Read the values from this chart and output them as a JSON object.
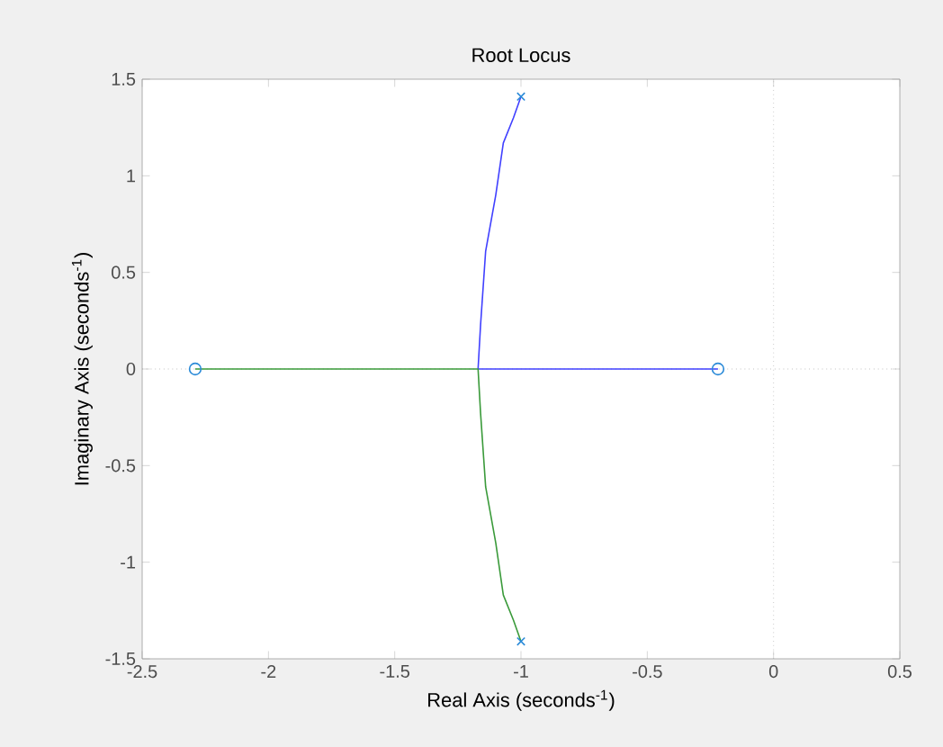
{
  "chart_data": {
    "type": "line",
    "title": "Root Locus",
    "xlabel": "Real Axis (seconds$^{-1}$)",
    "ylabel": "Imaginary Axis (seconds$^{-1}$)",
    "xlim": [
      -2.5,
      0.5
    ],
    "ylim": [
      -1.5,
      1.5
    ],
    "xticks": [
      -2.5,
      -2,
      -1.5,
      -1,
      -0.5,
      0,
      0.5
    ],
    "yticks": [
      -1.5,
      -1,
      -0.5,
      0,
      0.5,
      1,
      1.5
    ],
    "grid": false,
    "ref_lines": [
      {
        "axis": "x",
        "value": 0,
        "color": "#b0b0b0",
        "line_style": "dotted"
      },
      {
        "axis": "y",
        "value": 0,
        "color": "#a0a0a0",
        "line_style": "dotted"
      }
    ],
    "series": [
      {
        "type": "line",
        "color": "#4040ff",
        "marker": "none",
        "x": [
          -1,
          -1.03,
          -1.07,
          -1.1,
          -1.14,
          -1.16,
          -1.17,
          -0.22
        ],
        "values": [
          1.41,
          1.3,
          1.17,
          0.9,
          0.61,
          0.23,
          0,
          0
        ]
      },
      {
        "type": "line",
        "color": "#3a9a3a",
        "marker": "none",
        "x": [
          -1,
          -1.03,
          -1.07,
          -1.1,
          -1.14,
          -1.16,
          -1.17,
          -2.29
        ],
        "values": [
          -1.41,
          -1.3,
          -1.17,
          -0.9,
          -0.61,
          -0.23,
          0,
          0
        ]
      },
      {
        "type": "scatter",
        "color": "#2a8ad8",
        "marker": "cross",
        "x": [
          -1,
          -1
        ],
        "values": [
          1.41,
          -1.41
        ]
      },
      {
        "type": "scatter",
        "color": "#2a8ad8",
        "marker": "circle",
        "x": [
          -2.29,
          -0.22
        ],
        "values": [
          0,
          0
        ]
      }
    ]
  }
}
